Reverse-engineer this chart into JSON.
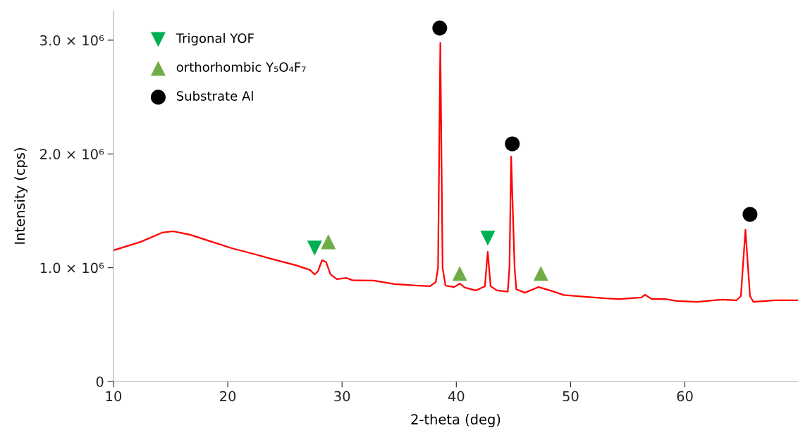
{
  "chart_data": {
    "type": "line",
    "xlabel": "2-theta (deg)",
    "ylabel": "Intensity (cps)",
    "xlim": [
      10,
      69.9
    ],
    "xticks": [
      10,
      20,
      30,
      40,
      50,
      60
    ],
    "ylim": [
      0,
      3260000
    ],
    "yticks": [
      0,
      {
        "value": 1000000,
        "label": "1.0 × 10⁶"
      },
      {
        "value": 2000000,
        "label": "2.0 × 10⁶"
      },
      {
        "value": 3000000,
        "label": "3.0 × 10⁶"
      }
    ],
    "grid": false,
    "legend": "top left",
    "series": [
      {
        "color": "#ff0000",
        "marker": "none",
        "x": [
          10,
          12.4,
          14.25,
          15.2,
          16.7,
          18.6,
          20.4,
          22.3,
          24.1,
          26.0,
          27.2,
          27.6,
          27.9,
          28.25,
          28.6,
          29.0,
          29.55,
          30.4,
          30.9,
          32.75,
          34.6,
          36.45,
          37.7,
          38.2,
          38.4,
          38.6,
          38.8,
          39.05,
          39.8,
          40.3,
          40.75,
          41.7,
          42.5,
          42.75,
          43.0,
          43.55,
          44.5,
          44.65,
          44.8,
          45.1,
          45.25,
          46.0,
          47.2,
          48.2,
          49.4,
          51.25,
          53.1,
          54.3,
          56.2,
          56.5,
          57.1,
          58.3,
          59.3,
          61.1,
          63.3,
          64.5,
          64.9,
          65.3,
          65.7,
          66.0,
          67.9,
          69.9
        ],
        "values": [
          1153000,
          1228000,
          1308000,
          1320000,
          1290000,
          1228000,
          1170000,
          1120000,
          1070000,
          1020000,
          980000,
          940000,
          970000,
          1066000,
          1050000,
          940000,
          900000,
          910000,
          890000,
          887000,
          856000,
          843000,
          837000,
          874000,
          1000000,
          2976000,
          1000000,
          843000,
          830000,
          860000,
          825000,
          800000,
          837000,
          1140000,
          837000,
          800000,
          790000,
          1000000,
          1978000,
          1000000,
          810000,
          780000,
          830000,
          800000,
          760000,
          744000,
          730000,
          725000,
          738000,
          762000,
          725000,
          725000,
          707000,
          700000,
          720000,
          713000,
          750000,
          1333000,
          750000,
          700000,
          713000,
          713000
        ]
      },
      {
        "type": "scatter",
        "name": "Trigonal YOF",
        "color": "#00b050",
        "marker": "triangle_down",
        "x": [
          27.6,
          42.75
        ],
        "values": [
          1172000,
          1259000
        ]
      },
      {
        "type": "scatter",
        "name": "orthorhombic Y₅O₄F₇",
        "color": "#70ad47",
        "marker": "triangle",
        "x": [
          28.8,
          40.3,
          47.4
        ],
        "values": [
          1228000,
          950000,
          950000
        ]
      },
      {
        "type": "scatter",
        "name": "Substrate Al",
        "color": "#000000",
        "marker": "circle",
        "x": [
          38.55,
          44.9,
          65.7
        ],
        "values": [
          3106000,
          2089000,
          1469000
        ]
      }
    ]
  }
}
